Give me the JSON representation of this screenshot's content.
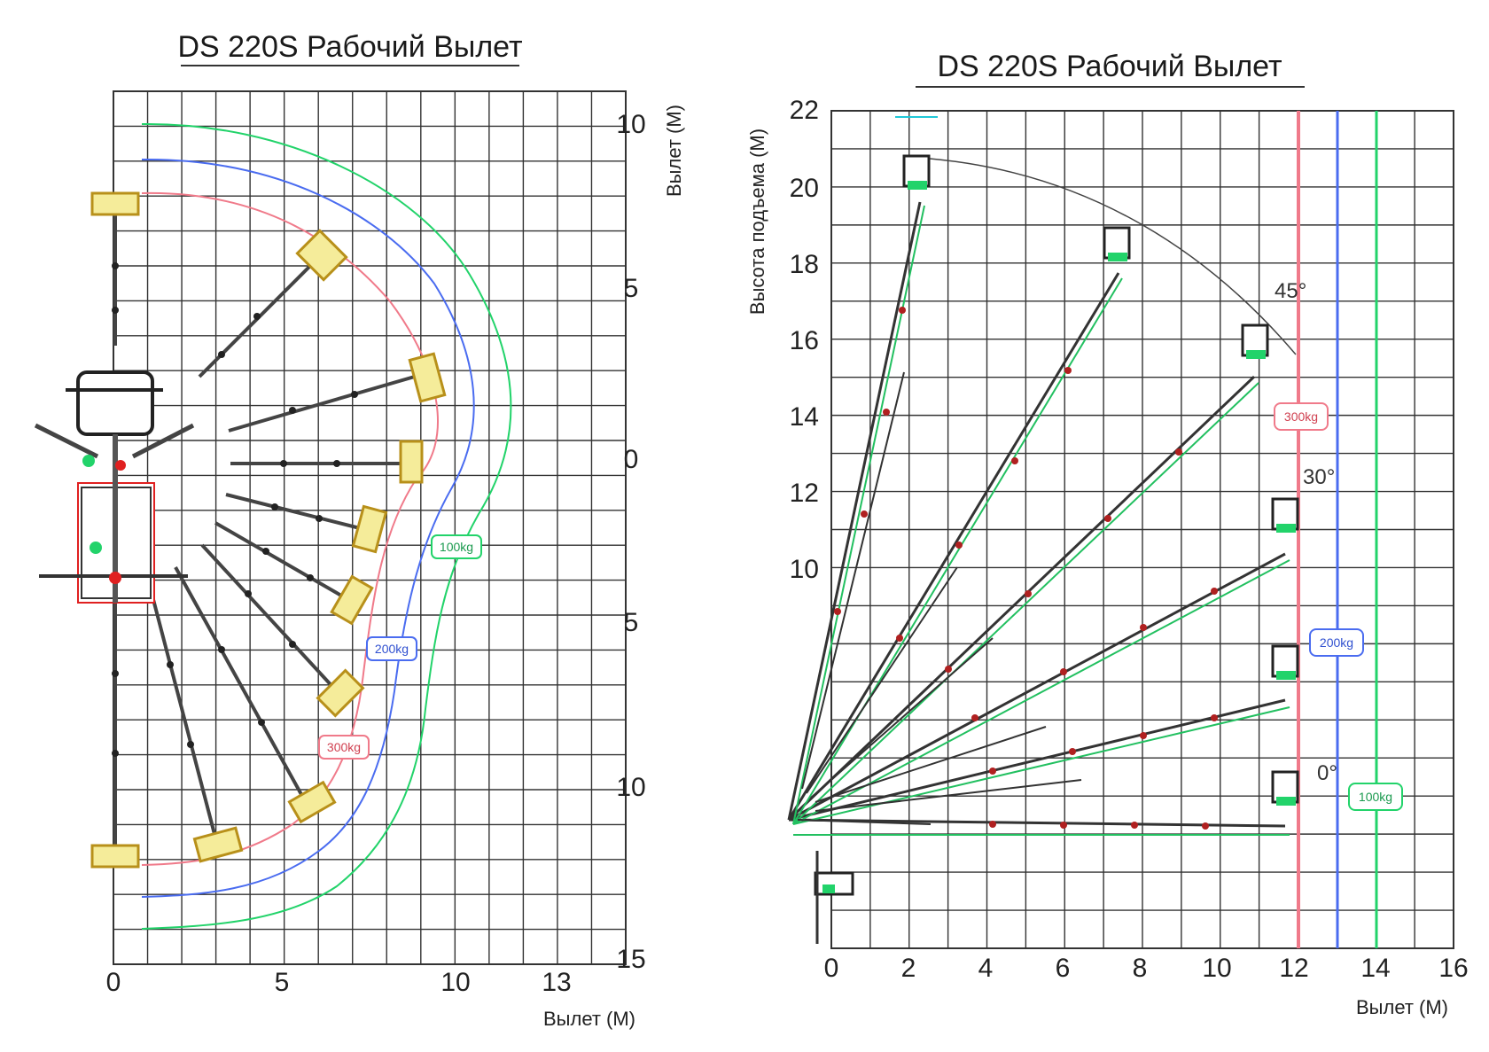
{
  "left_chart": {
    "title": "DS 220S Рабочий Вылет",
    "right_ticks": [
      "10",
      "5",
      "0",
      "5",
      "10",
      "15"
    ],
    "bottom_ticks": [
      "0",
      "5",
      "10",
      "13"
    ],
    "right_axis_label": "Вылет (М)",
    "bottom_axis_label": "Вылет (М)",
    "load_tags": [
      "100kg",
      "200kg",
      "300kg"
    ]
  },
  "right_chart": {
    "title": "DS 220S Рабочий Вылет",
    "y_ticks": [
      "22",
      "20",
      "18",
      "16",
      "14",
      "12",
      "10"
    ],
    "x_ticks": [
      "0",
      "2",
      "4",
      "6",
      "8",
      "10",
      "12",
      "14",
      "16"
    ],
    "y_axis_label": "Высота подъема (М)",
    "x_axis_label": "Вылет (М)",
    "angle_labels": [
      "45°",
      "30°",
      "0°"
    ],
    "load_tags": [
      "300kg",
      "200kg",
      "100kg"
    ]
  },
  "colors": {
    "load_100kg": "#22d36a",
    "load_200kg": "#4a6cf0",
    "load_300kg": "#f07a8a",
    "grid": "#333333",
    "boom": "#444444",
    "platform": "#d9b234"
  }
}
